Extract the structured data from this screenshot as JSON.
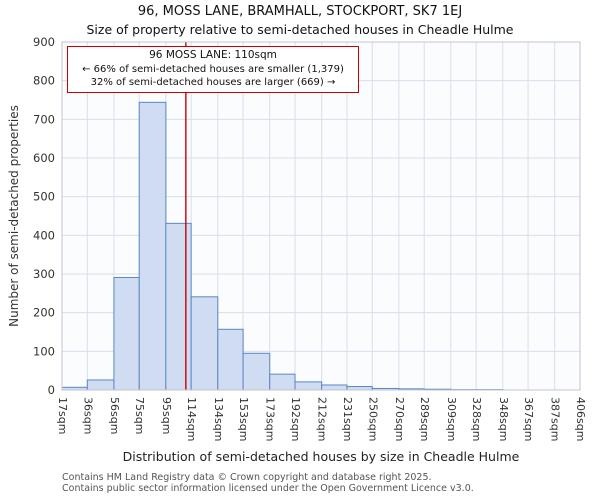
{
  "page": {
    "title": "96, MOSS LANE, BRAMHALL, STOCKPORT, SK7 1EJ",
    "subtitle": "Size of property relative to semi-detached houses in Cheadle Hulme",
    "footer_line1": "Contains HM Land Registry data © Crown copyright and database right 2025.",
    "footer_line2": "Contains public sector information licensed under the Open Government Licence v3.0."
  },
  "annotation": {
    "line1": "96 MOSS LANE: 110sqm",
    "line2": "← 66% of semi-detached houses are smaller (1,379)",
    "line3": "32% of semi-detached houses are larger (669) →"
  },
  "chart_data": {
    "type": "bar",
    "title": "96, MOSS LANE, BRAMHALL, STOCKPORT, SK7 1EJ",
    "subtitle": "Size of property relative to semi-detached houses in Cheadle Hulme",
    "xlabel": "Distribution of semi-detached houses by size in Cheadle Hulme",
    "ylabel": "Number of semi-detached properties",
    "x_tick_labels": [
      "17sqm",
      "36sqm",
      "56sqm",
      "75sqm",
      "95sqm",
      "114sqm",
      "134sqm",
      "153sqm",
      "173sqm",
      "192sqm",
      "212sqm",
      "231sqm",
      "250sqm",
      "270sqm",
      "289sqm",
      "309sqm",
      "328sqm",
      "348sqm",
      "367sqm",
      "387sqm",
      "406sqm"
    ],
    "bin_edges": [
      17,
      36,
      56,
      75,
      95,
      114,
      134,
      153,
      173,
      192,
      212,
      231,
      250,
      270,
      289,
      309,
      328,
      348,
      367,
      387,
      406
    ],
    "values": [
      7,
      26,
      291,
      744,
      431,
      241,
      157,
      95,
      41,
      21,
      13,
      9,
      4,
      3,
      2,
      1,
      1,
      0,
      0,
      0
    ],
    "ylim": [
      0,
      900
    ],
    "y_ticks": [
      0,
      100,
      200,
      300,
      400,
      500,
      600,
      700,
      800,
      900
    ],
    "grid": true,
    "legend": "none",
    "marker_value": 110,
    "colors": {
      "bar_fill": "#cfdcf1",
      "bar_stroke": "#5b87c5",
      "marker_line": "#cc0000",
      "annotation_border": "#cc0000",
      "grid_line": "#d8deeb",
      "plot_border": "#c0c6d0",
      "text": "#333333"
    }
  }
}
